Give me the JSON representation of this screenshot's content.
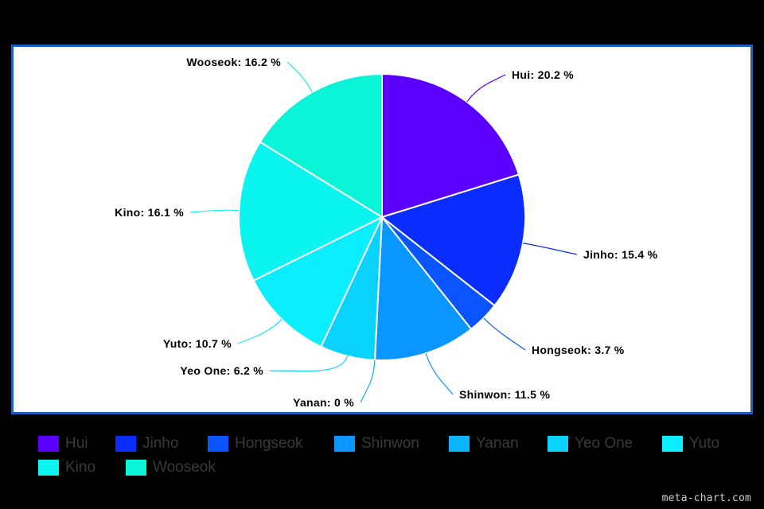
{
  "chart_data": {
    "type": "pie",
    "title": "",
    "categories": [
      "Hui",
      "Jinho",
      "Hongseok",
      "Shinwon",
      "Yanan",
      "Yeo One",
      "Yuto",
      "Kino",
      "Wooseok"
    ],
    "values": [
      20.2,
      15.4,
      3.7,
      11.5,
      0,
      6.2,
      10.7,
      16.1,
      16.2
    ],
    "slice_labels": [
      "Hui: 20.2 %",
      "Jinho: 15.4 %",
      "Hongseok: 3.7 %",
      "Shinwon: 11.5 %",
      "Yanan: 0 %",
      "Yeo One: 6.2 %",
      "Yuto: 10.7 %",
      "Kino: 16.1 %",
      "Wooseok: 16.2 %"
    ],
    "colors": [
      "#5b00ff",
      "#0a2cff",
      "#0a55ff",
      "#0a96ff",
      "#0ab4ff",
      "#0ad2ff",
      "#0aeeff",
      "#0af4f0",
      "#0af5d8"
    ],
    "legend_position": "bottom"
  },
  "watermark": "meta-chart.com"
}
